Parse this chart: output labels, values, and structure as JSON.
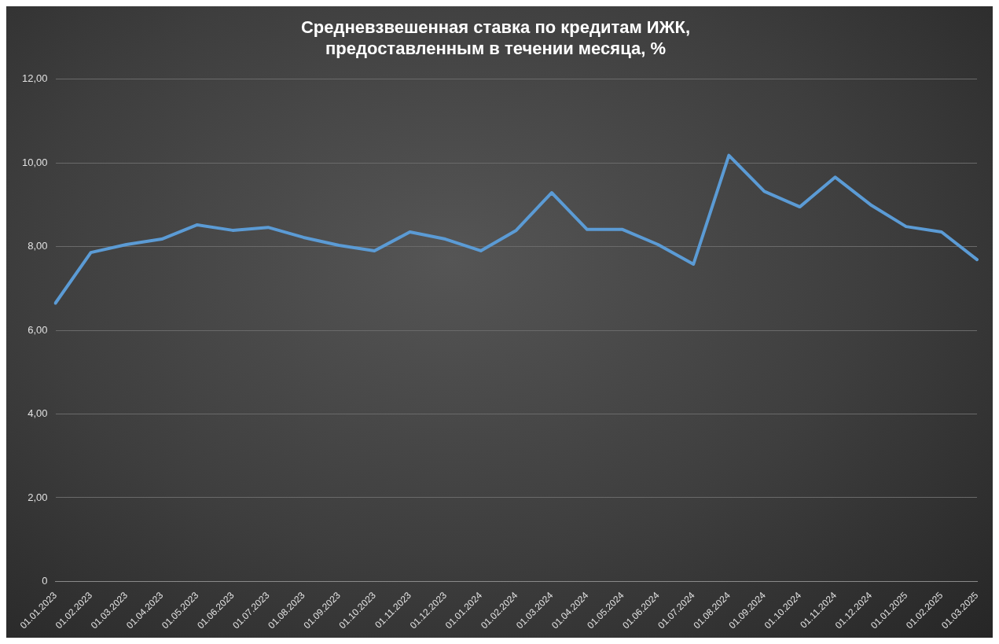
{
  "chart_data": {
    "type": "line",
    "title": "Средневзвешенная ставка по кредитам ИЖК,\nпредоставленным в течении месяца, %",
    "categories": [
      "01.01.2023",
      "01.02.2023",
      "01.03.2023",
      "01.04.2023",
      "01.05.2023",
      "01.06.2023",
      "01.07.2023",
      "01.08.2023",
      "01.09.2023",
      "01.10.2023",
      "01.11.2023",
      "01.12.2023",
      "01.01.2024",
      "01.02.2024",
      "01.03.2024",
      "01.04.2024",
      "01.05.2024",
      "01.06.2024",
      "01.07.2024",
      "01.08.2024",
      "01.09.2024",
      "01.10.2024",
      "01.11.2024",
      "01.12.2024",
      "01.01.2025",
      "01.02.2025",
      "01.03.2025"
    ],
    "series": [
      {
        "color": "#5b9bd5",
        "values": [
          6.65,
          7.86,
          8.05,
          8.18,
          8.52,
          8.39,
          8.46,
          8.22,
          8.03,
          7.9,
          8.35,
          8.18,
          7.9,
          8.39,
          9.29,
          8.41,
          8.41,
          8.05,
          7.58,
          10.18,
          9.32,
          8.95,
          9.66,
          9.0,
          8.48,
          8.35,
          7.69
        ]
      }
    ],
    "ylim": [
      0,
      12
    ],
    "yticks": [
      {
        "value": 0,
        "label": "0"
      },
      {
        "value": 2,
        "label": "2,00"
      },
      {
        "value": 4,
        "label": "4,00"
      },
      {
        "value": 6,
        "label": "6,00"
      },
      {
        "value": 8,
        "label": "8,00"
      },
      {
        "value": 10,
        "label": "10,00"
      },
      {
        "value": 12,
        "label": "12,00"
      }
    ],
    "grid": "y",
    "legend": false,
    "marker": "none",
    "line_style": "solid"
  }
}
